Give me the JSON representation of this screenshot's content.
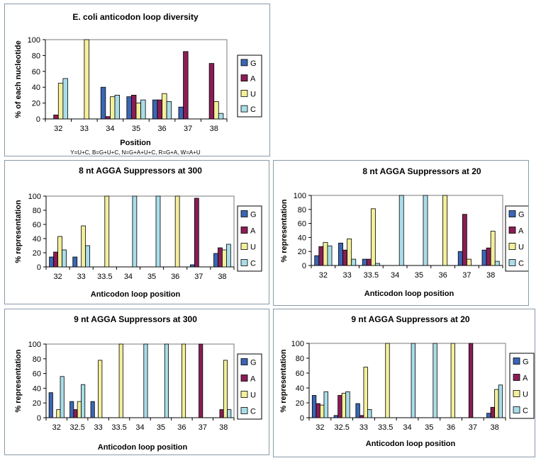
{
  "colors": {
    "G": "#3a66b4",
    "A": "#8a1d55",
    "U": "#f4ef9a",
    "C": "#a9dde9",
    "frame": "#7a7a7a"
  },
  "legend_labels": [
    "G",
    "A",
    "U",
    "C"
  ],
  "chart_data": [
    {
      "type": "bar",
      "title": "E. coli anticodon loop diversity",
      "xlabel": "Position",
      "ylabel": "% of each nucleotide",
      "note": "Y=U+C, B=G+U+C, N=G+A+U+C, R=G+A, W=A+U",
      "ylim": [
        0,
        100
      ],
      "yticks": [
        0,
        20,
        40,
        60,
        80,
        100
      ],
      "categories": [
        "32",
        "33",
        "34",
        "35",
        "36",
        "37",
        "38"
      ],
      "series": [
        {
          "name": "G",
          "values": [
            0,
            0,
            40,
            28,
            24,
            15,
            0
          ]
        },
        {
          "name": "A",
          "values": [
            5,
            0,
            3,
            30,
            24,
            85,
            70
          ]
        },
        {
          "name": "U",
          "values": [
            45,
            100,
            28,
            20,
            32,
            0,
            22
          ]
        },
        {
          "name": "C",
          "values": [
            51,
            0,
            30,
            24,
            22,
            0,
            7
          ]
        }
      ]
    },
    {
      "type": "bar",
      "title": "8 nt AGGA Suppressors at 300",
      "xlabel": "Anticodon loop position",
      "ylabel": "% representation",
      "ylim": [
        0,
        100
      ],
      "yticks": [
        0,
        20,
        40,
        60,
        80,
        100
      ],
      "categories": [
        "32",
        "33",
        "33.5",
        "34",
        "35",
        "36",
        "37",
        "38"
      ],
      "series": [
        {
          "name": "G",
          "values": [
            14,
            14,
            0,
            0,
            0,
            0,
            3,
            19
          ]
        },
        {
          "name": "A",
          "values": [
            21,
            0,
            0,
            0,
            0,
            0,
            97,
            27
          ]
        },
        {
          "name": "U",
          "values": [
            43,
            58,
            100,
            0,
            0,
            100,
            0,
            24
          ]
        },
        {
          "name": "C",
          "values": [
            24,
            30,
            0,
            100,
            100,
            0,
            0,
            32
          ]
        }
      ]
    },
    {
      "type": "bar",
      "title": "8 nt AGGA Suppressors at 20",
      "xlabel": "Anticodon loop position",
      "ylabel": "% representation",
      "ylim": [
        0,
        100
      ],
      "yticks": [
        0,
        20,
        40,
        60,
        80,
        100
      ],
      "categories": [
        "32",
        "33",
        "33.5",
        "34",
        "35",
        "36",
        "37",
        "38"
      ],
      "series": [
        {
          "name": "G",
          "values": [
            14,
            32,
            9,
            0,
            0,
            0,
            20,
            22
          ]
        },
        {
          "name": "A",
          "values": [
            27,
            22,
            9,
            0,
            0,
            0,
            73,
            25
          ]
        },
        {
          "name": "U",
          "values": [
            33,
            38,
            81,
            0,
            0,
            100,
            9,
            49
          ]
        },
        {
          "name": "C",
          "values": [
            28,
            9,
            3,
            100,
            100,
            0,
            0,
            6
          ]
        }
      ]
    },
    {
      "type": "bar",
      "title": "9 nt AGGA Suppressors at 300",
      "xlabel": "Anticodon loop position",
      "ylabel": "% representation",
      "ylim": [
        0,
        100
      ],
      "yticks": [
        0,
        20,
        40,
        60,
        80,
        100
      ],
      "categories": [
        "32",
        "32.5",
        "33",
        "33.5",
        "34",
        "35",
        "36",
        "37",
        "38"
      ],
      "series": [
        {
          "name": "G",
          "values": [
            34,
            22,
            22,
            0,
            0,
            0,
            0,
            0,
            0
          ]
        },
        {
          "name": "A",
          "values": [
            0,
            11,
            0,
            0,
            0,
            0,
            0,
            100,
            11
          ]
        },
        {
          "name": "U",
          "values": [
            11,
            22,
            78,
            100,
            0,
            0,
            100,
            0,
            78
          ]
        },
        {
          "name": "C",
          "values": [
            56,
            45,
            0,
            0,
            100,
            100,
            0,
            0,
            11
          ]
        }
      ]
    },
    {
      "type": "bar",
      "title": "9 nt AGGA Suppressors at 20",
      "xlabel": "Anticodon loop position",
      "ylabel": "% representation",
      "ylim": [
        0,
        100
      ],
      "yticks": [
        0,
        20,
        40,
        60,
        80,
        100
      ],
      "categories": [
        "32",
        "32.5",
        "33",
        "33.5",
        "34",
        "35",
        "36",
        "37",
        "38"
      ],
      "series": [
        {
          "name": "G",
          "values": [
            30,
            3,
            19,
            0,
            0,
            0,
            0,
            0,
            6
          ]
        },
        {
          "name": "A",
          "values": [
            19,
            30,
            3,
            0,
            0,
            0,
            0,
            100,
            14
          ]
        },
        {
          "name": "U",
          "values": [
            17,
            33,
            68,
            100,
            0,
            0,
            100,
            0,
            38
          ]
        },
        {
          "name": "C",
          "values": [
            35,
            35,
            11,
            0,
            100,
            100,
            0,
            0,
            44
          ]
        }
      ]
    }
  ]
}
